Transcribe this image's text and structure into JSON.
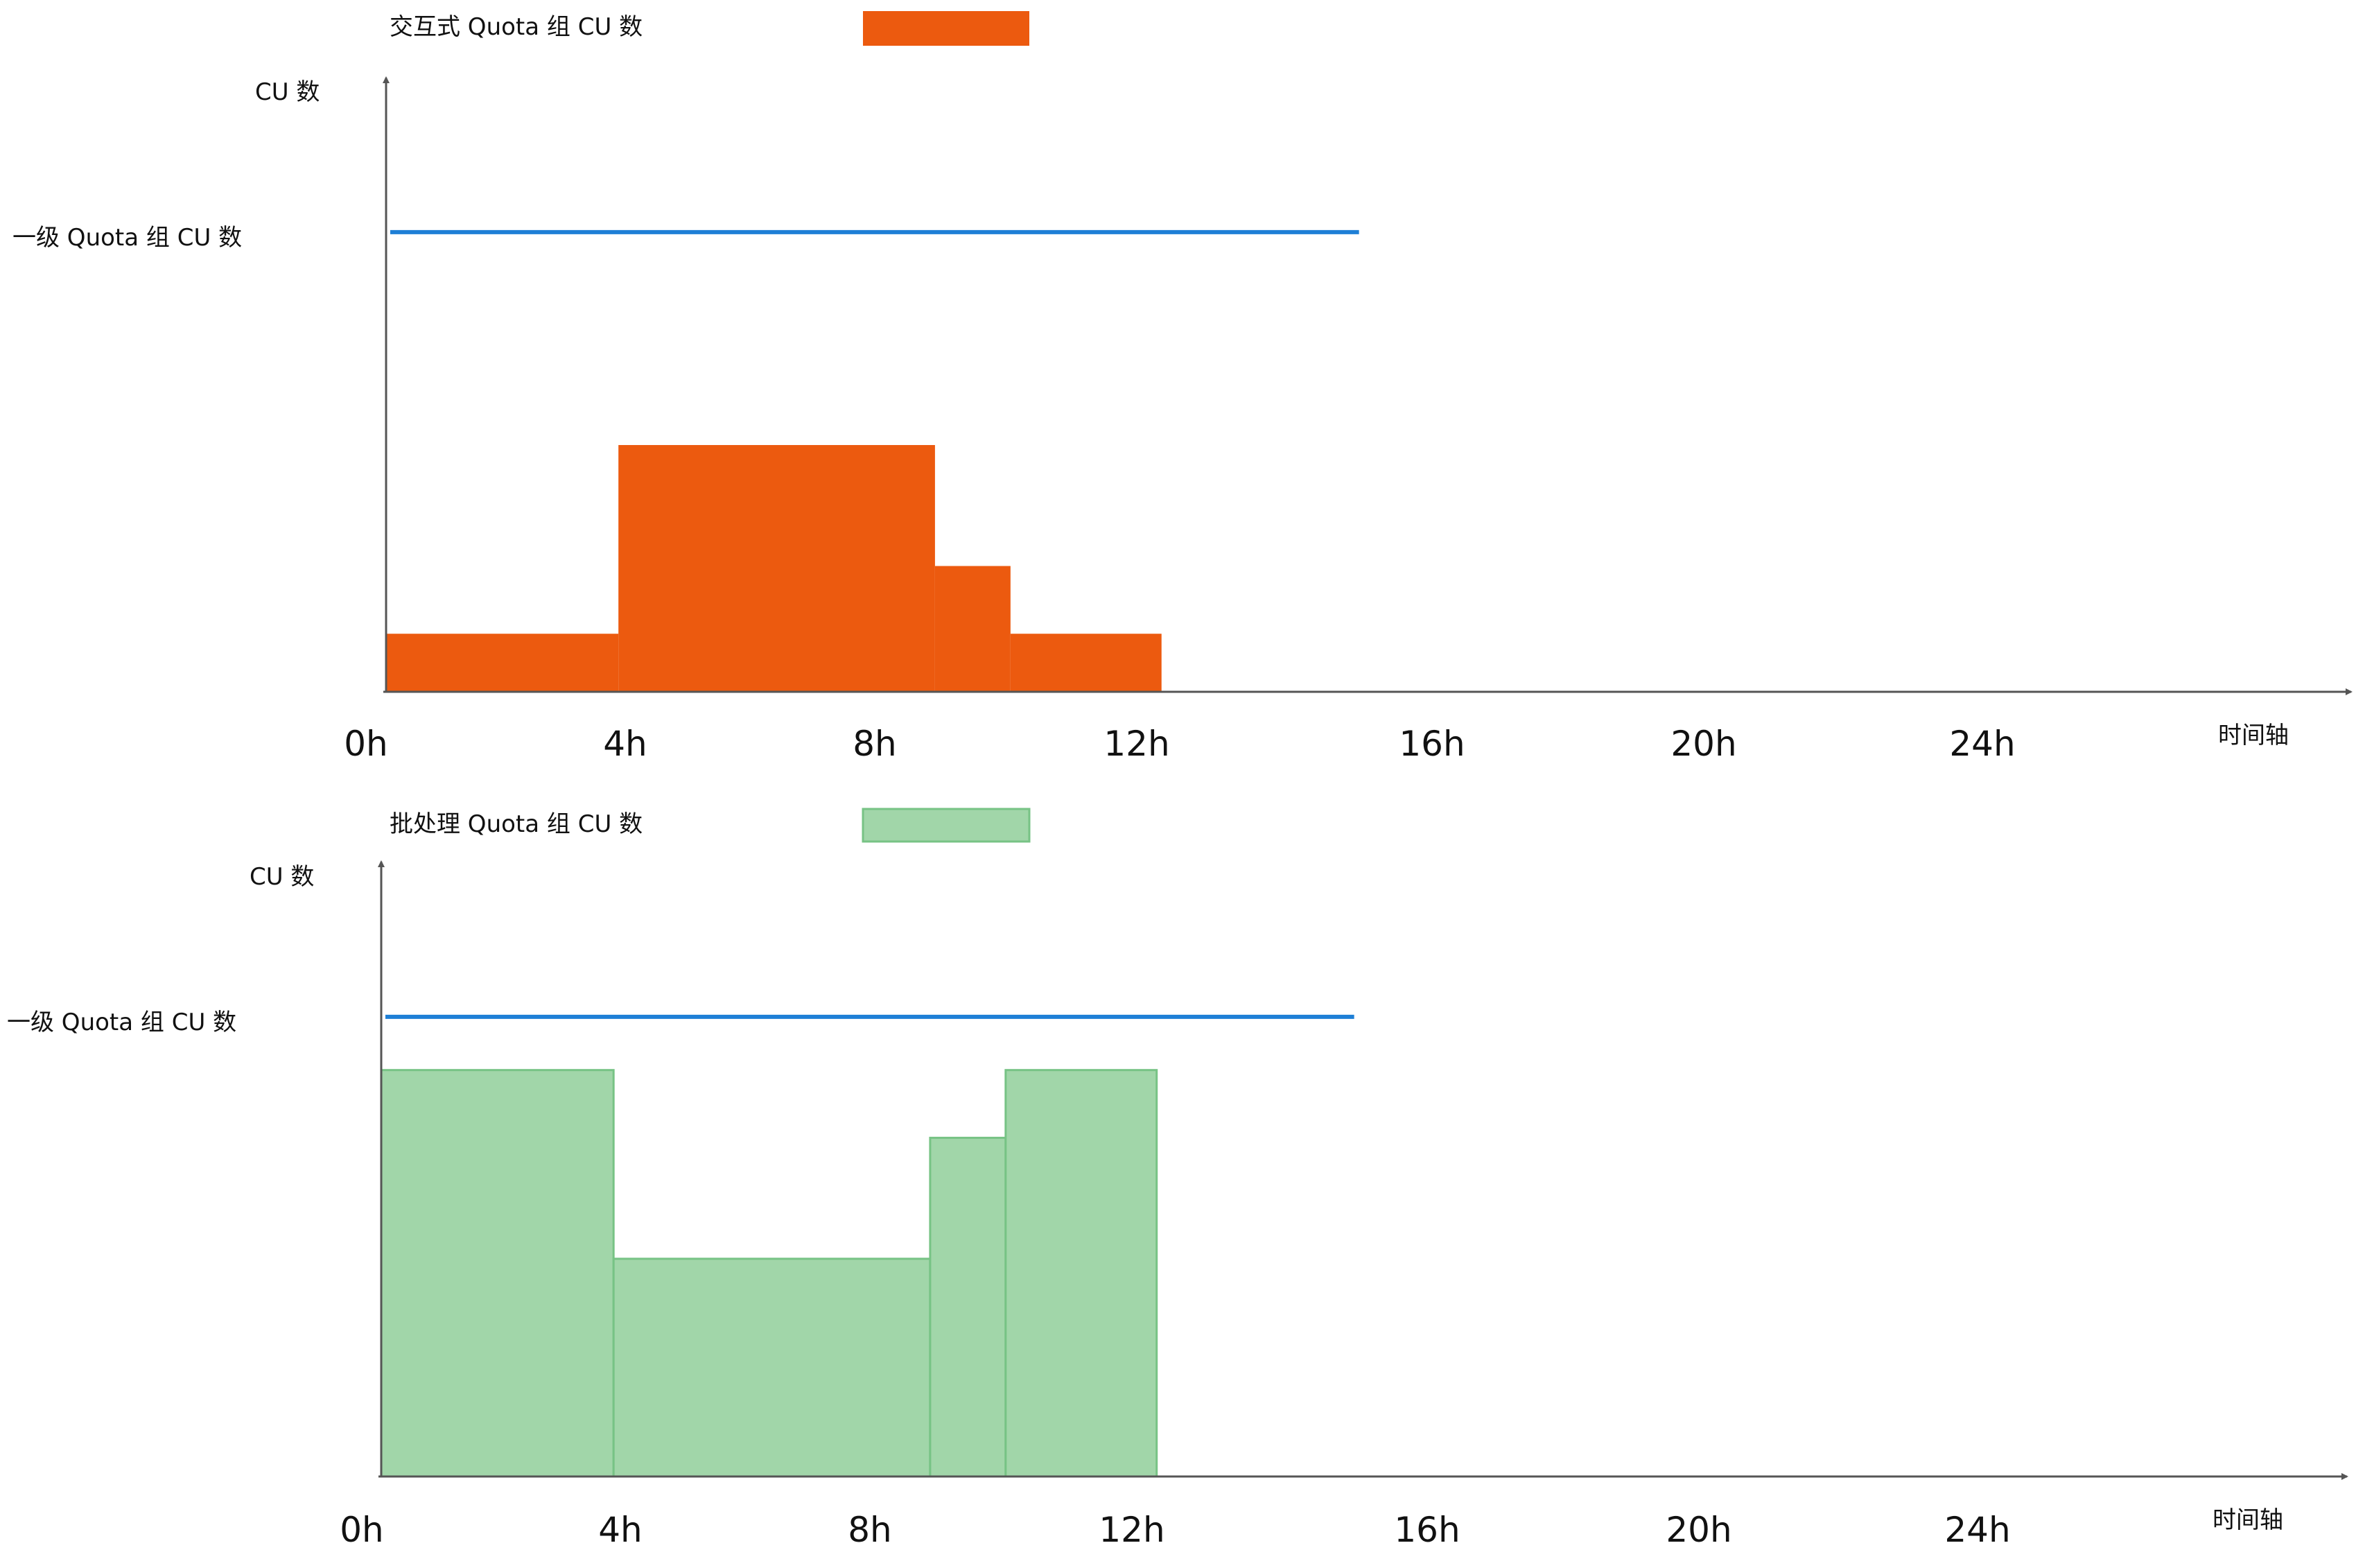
{
  "chart_data": [
    {
      "type": "area",
      "style": "step",
      "legend": {
        "label": "交互式 Quota 组 CU 数",
        "color": "#EC5A0F",
        "placement": "top-center"
      },
      "ylabel": "CU 数",
      "xlabel": "时间轴",
      "x_ticks": [
        "0h",
        "4h",
        "8h",
        "12h",
        "16h",
        "20h",
        "24h"
      ],
      "xlim": [
        0,
        33.6
      ],
      "ylim": [
        0,
        10
      ],
      "reference_line": {
        "label": "一级 Quota 组 CU 数",
        "value": 9.5,
        "color": "#1E7FD6",
        "x_range": [
          0,
          33.5
        ]
      },
      "fill_color": "#EC5A0F",
      "segments": [
        {
          "x_start": 0,
          "x_end": 8,
          "value": 1.2
        },
        {
          "x_start": 8,
          "x_end": 18.9,
          "value": 5.1
        },
        {
          "x_start": 18.9,
          "x_end": 21.5,
          "value": 2.6
        },
        {
          "x_start": 21.5,
          "x_end": 26.7,
          "value": 1.2
        }
      ]
    },
    {
      "type": "area",
      "style": "step",
      "legend": {
        "label": "批处理 Quota 组 CU 数",
        "color": "#77C385",
        "placement": "top-center"
      },
      "ylabel": "CU 数",
      "xlabel": "时间轴",
      "x_ticks": [
        "0h",
        "4h",
        "8h",
        "12h",
        "16h",
        "20h",
        "24h"
      ],
      "xlim": [
        0,
        33.6
      ],
      "ylim": [
        0,
        10
      ],
      "reference_line": {
        "label": "一级 Quota 组 CU 数",
        "value": 9.5,
        "color": "#1E7FD6",
        "x_range": [
          0,
          33.5
        ]
      },
      "fill_color": "#A1D6A9",
      "stroke_color": "#77C385",
      "segments": [
        {
          "x_start": 0,
          "x_end": 8,
          "value": 8.4
        },
        {
          "x_start": 8,
          "x_end": 18.9,
          "value": 4.5
        },
        {
          "x_start": 18.9,
          "x_end": 21.5,
          "value": 7.0
        },
        {
          "x_start": 21.5,
          "x_end": 26.7,
          "value": 8.4
        }
      ]
    }
  ]
}
